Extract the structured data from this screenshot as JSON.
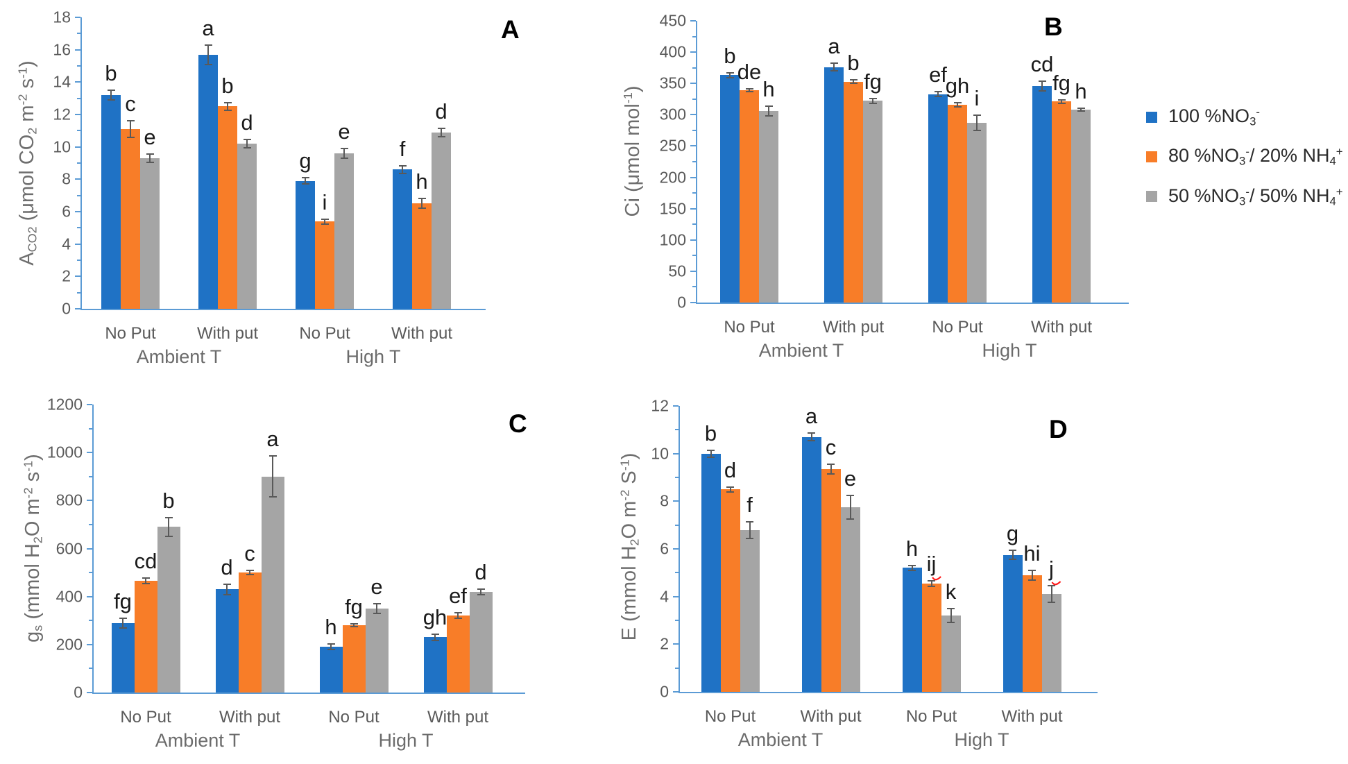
{
  "colors": {
    "blue": "#1F72C5",
    "orange": "#F87D28",
    "gray": "#A5A5A5",
    "axis": "#5B9BD5",
    "tick_text": "#595959",
    "axis_title": "#6E6E6E",
    "letter_text": "#1A1A1A",
    "error_bar": "#595959",
    "panel_letter": "#000000",
    "red_mark": "#FF1A1A"
  },
  "legend": {
    "items": [
      {
        "color_key": "blue",
        "label_segments": [
          [
            "100 %NO",
            "n"
          ],
          [
            "3",
            "sub"
          ],
          [
            "-",
            "sup"
          ]
        ]
      },
      {
        "color_key": "orange",
        "label_segments": [
          [
            "80 %NO",
            "n"
          ],
          [
            "3",
            "sub"
          ],
          [
            "-",
            "sup"
          ],
          [
            "/ 20% NH",
            "n"
          ],
          [
            "4",
            "sub"
          ],
          [
            "+",
            "sup"
          ]
        ]
      },
      {
        "color_key": "gray",
        "label_segments": [
          [
            "50 %NO",
            "n"
          ],
          [
            "3",
            "sub"
          ],
          [
            "-",
            "sup"
          ],
          [
            "/ 50% NH",
            "n"
          ],
          [
            "4",
            "sub"
          ],
          [
            "+",
            "sup"
          ]
        ]
      }
    ]
  },
  "chart_data": [
    {
      "id": "A",
      "type": "bar",
      "panel_label": "A",
      "ylabel_segments": [
        [
          "A",
          "n"
        ],
        [
          "CO2",
          "sub"
        ],
        [
          " (μmol CO",
          "n"
        ],
        [
          "2",
          "sub"
        ],
        [
          " m",
          "n"
        ],
        [
          "-2",
          "sup"
        ],
        [
          " s",
          "n"
        ],
        [
          "-1",
          "sup"
        ],
        [
          ")",
          "n"
        ]
      ],
      "ylim": [
        0,
        18
      ],
      "ytick_step": 2,
      "grid": false,
      "categories": [
        "No Put",
        "With put",
        "No Put",
        "With put"
      ],
      "supergroups": [
        "Ambient T",
        "High T"
      ],
      "series": [
        {
          "name": "100 %NO3-",
          "color_key": "blue",
          "values": [
            13.2,
            15.7,
            7.9,
            8.6
          ],
          "errors": [
            0.3,
            0.6,
            0.2,
            0.25
          ],
          "letters": [
            "b",
            "a",
            "g",
            "f"
          ],
          "red_marks": [
            false,
            false,
            false,
            false
          ]
        },
        {
          "name": "80 %NO3-/ 20% NH4+",
          "color_key": "orange",
          "values": [
            11.1,
            12.5,
            5.4,
            6.5
          ],
          "errors": [
            0.5,
            0.25,
            0.15,
            0.3
          ],
          "letters": [
            "c",
            "b",
            "i",
            "h"
          ],
          "red_marks": [
            false,
            false,
            false,
            false
          ]
        },
        {
          "name": "50 %NO3-/ 50% NH4+",
          "color_key": "gray",
          "values": [
            9.3,
            10.2,
            9.6,
            10.9
          ],
          "errors": [
            0.25,
            0.25,
            0.3,
            0.25
          ],
          "letters": [
            "e",
            "d",
            "e",
            "d"
          ],
          "red_marks": [
            false,
            false,
            false,
            false
          ]
        }
      ]
    },
    {
      "id": "B",
      "type": "bar",
      "panel_label": "B",
      "ylabel_segments": [
        [
          "Ci (μmol mol",
          "n"
        ],
        [
          "-1",
          "sup"
        ],
        [
          ")",
          "n"
        ]
      ],
      "ylim": [
        0,
        450
      ],
      "ytick_step": 50,
      "grid": false,
      "categories": [
        "No Put",
        "With put",
        "No Put",
        "With put"
      ],
      "supergroups": [
        "Ambient T",
        "High T"
      ],
      "series": [
        {
          "name": "100 %NO3-",
          "color_key": "blue",
          "values": [
            363,
            376,
            333,
            346
          ],
          "errors": [
            4,
            6,
            4,
            8
          ],
          "letters": [
            "b",
            "a",
            "ef",
            "cd"
          ],
          "red_marks": [
            false,
            false,
            false,
            false
          ]
        },
        {
          "name": "80 %NO3-/ 20% NH4+",
          "color_key": "orange",
          "values": [
            339,
            353,
            316,
            321
          ],
          "errors": [
            2,
            3,
            3,
            3
          ],
          "letters": [
            "de",
            "b",
            "gh",
            "fg"
          ],
          "red_marks": [
            false,
            false,
            false,
            false
          ]
        },
        {
          "name": "50 %NO3-/ 50% NH4+",
          "color_key": "gray",
          "values": [
            306,
            322,
            287,
            308
          ],
          "errors": [
            8,
            4,
            12,
            2
          ],
          "letters": [
            "h",
            "fg",
            "i",
            "h"
          ],
          "red_marks": [
            false,
            false,
            false,
            false
          ]
        }
      ]
    },
    {
      "id": "C",
      "type": "bar",
      "panel_label": "C",
      "ylabel_segments": [
        [
          "g",
          "n"
        ],
        [
          "s",
          "sub"
        ],
        [
          " (mmol H",
          "n"
        ],
        [
          "2",
          "sub"
        ],
        [
          "O m",
          "n"
        ],
        [
          "-2",
          "sup"
        ],
        [
          " s",
          "n"
        ],
        [
          "-1",
          "sup"
        ],
        [
          ")",
          "n"
        ]
      ],
      "ylim": [
        0,
        1200
      ],
      "ytick_step": 200,
      "grid": false,
      "categories": [
        "No Put",
        "With put",
        "No Put",
        "With put"
      ],
      "supergroups": [
        "Ambient T",
        "High T"
      ],
      "series": [
        {
          "name": "100 %NO3-",
          "color_key": "blue",
          "values": [
            290,
            430,
            190,
            230
          ],
          "errors": [
            20,
            22,
            12,
            12
          ],
          "letters": [
            "fg",
            "d",
            "h",
            "gh"
          ],
          "red_marks": [
            false,
            false,
            false,
            false
          ]
        },
        {
          "name": "80 %NO3-/ 20% NH4+",
          "color_key": "orange",
          "values": [
            465,
            500,
            280,
            320
          ],
          "errors": [
            12,
            8,
            5,
            12
          ],
          "letters": [
            "cd",
            "c",
            "fg",
            "ef"
          ],
          "red_marks": [
            false,
            false,
            false,
            false
          ]
        },
        {
          "name": "50 %NO3-/ 50% NH4+",
          "color_key": "gray",
          "values": [
            690,
            900,
            350,
            420
          ],
          "errors": [
            40,
            85,
            20,
            12
          ],
          "letters": [
            "b",
            "a",
            "e",
            "d"
          ],
          "red_marks": [
            false,
            false,
            false,
            false
          ]
        }
      ]
    },
    {
      "id": "D",
      "type": "bar",
      "panel_label": "D",
      "ylabel_segments": [
        [
          "E (mmol H",
          "n"
        ],
        [
          "2",
          "sub"
        ],
        [
          "O m",
          "n"
        ],
        [
          "-2",
          "sup"
        ],
        [
          " S",
          "n"
        ],
        [
          "-1",
          "sup"
        ],
        [
          ")",
          "n"
        ]
      ],
      "ylim": [
        0,
        12
      ],
      "ytick_step": 2,
      "grid": false,
      "categories": [
        "No Put",
        "With put",
        "No Put",
        "With put"
      ],
      "supergroups": [
        "Ambient T",
        "High T"
      ],
      "series": [
        {
          "name": "100 %NO3-",
          "color_key": "blue",
          "values": [
            10.0,
            10.7,
            5.2,
            5.75
          ],
          "errors": [
            0.15,
            0.15,
            0.1,
            0.2
          ],
          "letters": [
            "b",
            "a",
            "h",
            "g"
          ],
          "red_marks": [
            false,
            false,
            false,
            false
          ]
        },
        {
          "name": "80 %NO3-/ 20% NH4+",
          "color_key": "orange",
          "values": [
            8.5,
            9.35,
            4.55,
            4.9
          ],
          "errors": [
            0.1,
            0.2,
            0.12,
            0.2
          ],
          "letters": [
            "d",
            "c",
            "ij",
            "hi"
          ],
          "red_marks": [
            false,
            false,
            true,
            false
          ]
        },
        {
          "name": "50 %NO3-/ 50% NH4+",
          "color_key": "gray",
          "values": [
            6.8,
            7.75,
            3.2,
            4.1
          ],
          "errors": [
            0.35,
            0.5,
            0.3,
            0.35
          ],
          "letters": [
            "f",
            "e",
            "k",
            "j"
          ],
          "red_marks": [
            false,
            false,
            false,
            true
          ]
        }
      ]
    }
  ]
}
